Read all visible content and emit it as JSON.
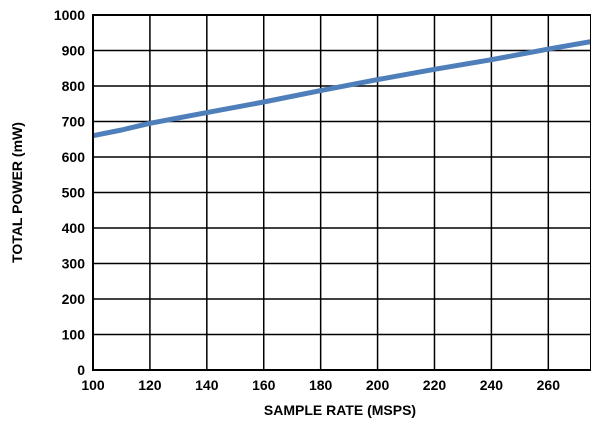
{
  "chart_data": {
    "type": "line",
    "title": "",
    "xlabel": "SAMPLE RATE (MSPS)",
    "ylabel": "TOTAL POWER (mW)",
    "xlim": [
      100,
      275
    ],
    "ylim": [
      0,
      1000
    ],
    "x_ticks": [
      100,
      120,
      140,
      160,
      180,
      200,
      220,
      240,
      260
    ],
    "y_ticks": [
      0,
      100,
      200,
      300,
      400,
      500,
      600,
      700,
      800,
      900,
      1000
    ],
    "grid": true,
    "legend": "none",
    "series": [
      {
        "color": "#4f7fba",
        "x": [
          100,
          110,
          120,
          140,
          160,
          180,
          200,
          220,
          240,
          260,
          275
        ],
        "y": [
          660,
          676,
          695,
          725,
          755,
          787,
          818,
          847,
          874,
          904,
          925
        ]
      }
    ]
  }
}
